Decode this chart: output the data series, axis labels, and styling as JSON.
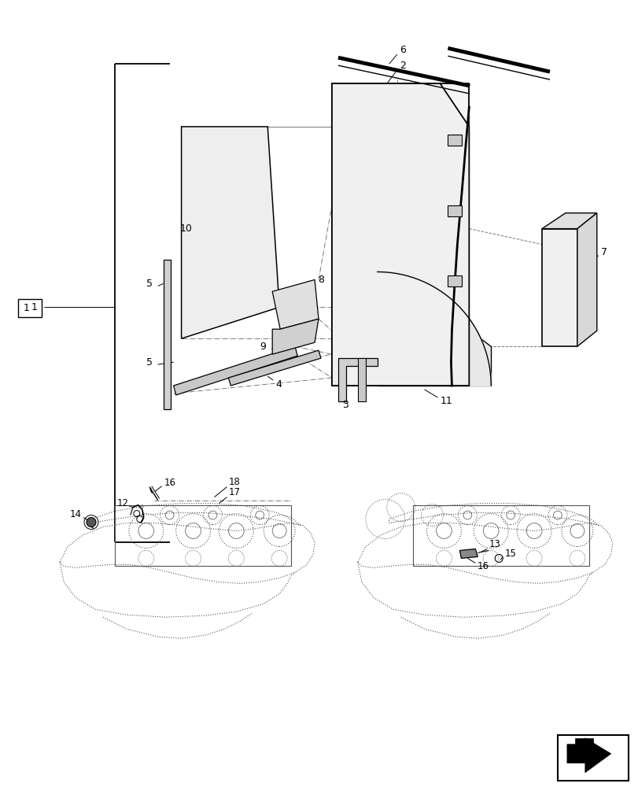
{
  "bg_color": "#ffffff",
  "lc": "#000000",
  "fig_w": 8.12,
  "fig_h": 10.0,
  "dpi": 100
}
